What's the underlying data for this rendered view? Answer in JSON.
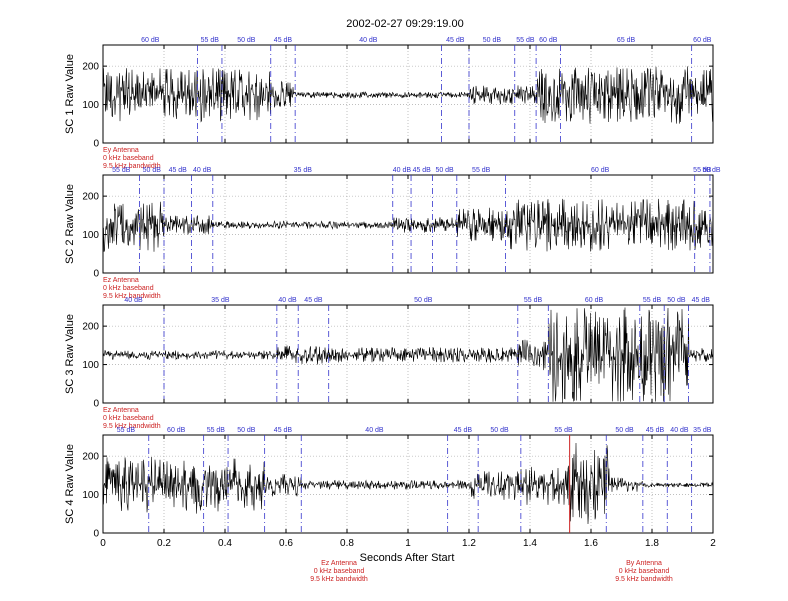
{
  "chart_data": {
    "type": "line",
    "title": "2002-02-27 09:29:19.00",
    "xlabel": "Seconds After Start",
    "xlim": [
      0,
      2
    ],
    "ylim": [
      0,
      255
    ],
    "x_ticks": [
      "0",
      "0.2",
      "0.4",
      "0.6",
      "0.8",
      "1",
      "1.2",
      "1.4",
      "1.6",
      "1.8",
      "2"
    ],
    "y_ticks": [
      "0",
      "100",
      "200"
    ],
    "grid": true,
    "colors": {
      "trace": "#000000",
      "gain_marker": "#3333cc",
      "antenna_note": "#cc2222",
      "channel_break": "#cc2222"
    },
    "panels": [
      {
        "ylabel": "SC 1 Raw Value",
        "notes": [
          "Ey Antenna",
          "0 kHz baseband",
          "9.5 kHz bandwidth"
        ],
        "gain_changes": [
          {
            "t": 0.0,
            "label": "60 dB"
          },
          {
            "t": 0.31,
            "label": "55 dB"
          },
          {
            "t": 0.39,
            "label": "50 dB"
          },
          {
            "t": 0.55,
            "label": "45 dB"
          },
          {
            "t": 0.63,
            "label": "40 dB"
          },
          {
            "t": 1.11,
            "label": "45 dB"
          },
          {
            "t": 1.2,
            "label": "50 dB"
          },
          {
            "t": 1.35,
            "label": "55 dB"
          },
          {
            "t": 1.42,
            "label": "60 dB"
          },
          {
            "t": 1.5,
            "label": "65 dB"
          },
          {
            "t": 1.93,
            "label": "60 dB"
          }
        ],
        "segments": [
          {
            "t0": 0.0,
            "t1": 0.55,
            "level": 125,
            "amp": 70
          },
          {
            "t0": 0.55,
            "t1": 0.63,
            "level": 125,
            "amp": 35
          },
          {
            "t0": 0.63,
            "t1": 1.2,
            "level": 125,
            "amp": 8
          },
          {
            "t0": 1.2,
            "t1": 1.42,
            "level": 125,
            "amp": 25
          },
          {
            "t0": 1.42,
            "t1": 2.0,
            "level": 125,
            "amp": 75
          }
        ]
      },
      {
        "ylabel": "SC 2 Raw Value",
        "notes": [
          "Ez Antenna",
          "0 kHz baseband",
          "9.5 kHz bandwidth"
        ],
        "gain_changes": [
          {
            "t": 0.0,
            "label": "55 dB"
          },
          {
            "t": 0.12,
            "label": "50 dB"
          },
          {
            "t": 0.2,
            "label": "45 dB"
          },
          {
            "t": 0.29,
            "label": "40 dB"
          },
          {
            "t": 0.36,
            "label": "35 dB"
          },
          {
            "t": 0.95,
            "label": "40 dB"
          },
          {
            "t": 1.01,
            "label": "45 dB"
          },
          {
            "t": 1.08,
            "label": "50 dB"
          },
          {
            "t": 1.16,
            "label": "55 dB"
          },
          {
            "t": 1.32,
            "label": "60 dB"
          },
          {
            "t": 1.94,
            "label": "55 dB"
          },
          {
            "t": 1.99,
            "label": "50 dB"
          }
        ],
        "segments": [
          {
            "t0": 0.0,
            "t1": 0.2,
            "level": 125,
            "amp": 70
          },
          {
            "t0": 0.2,
            "t1": 0.36,
            "level": 125,
            "amp": 25
          },
          {
            "t0": 0.36,
            "t1": 0.95,
            "level": 125,
            "amp": 10
          },
          {
            "t0": 0.95,
            "t1": 1.16,
            "level": 125,
            "amp": 20
          },
          {
            "t0": 1.16,
            "t1": 1.32,
            "level": 125,
            "amp": 45
          },
          {
            "t0": 1.32,
            "t1": 2.0,
            "level": 125,
            "amp": 70
          }
        ]
      },
      {
        "ylabel": "SC 3 Raw Value",
        "notes": [
          "Ez Antenna",
          "0 kHz baseband",
          "9.5 kHz bandwidth"
        ],
        "gain_changes": [
          {
            "t": 0.0,
            "label": "40 dB"
          },
          {
            "t": 0.2,
            "label": "35 dB"
          },
          {
            "t": 0.57,
            "label": "40 dB"
          },
          {
            "t": 0.64,
            "label": "45 dB"
          },
          {
            "t": 0.74,
            "label": "50 dB"
          },
          {
            "t": 1.36,
            "label": "55 dB"
          },
          {
            "t": 1.46,
            "label": "60 dB"
          },
          {
            "t": 1.76,
            "label": "55 dB"
          },
          {
            "t": 1.84,
            "label": "50 dB"
          },
          {
            "t": 1.92,
            "label": "45 dB"
          }
        ],
        "segments": [
          {
            "t0": 0.0,
            "t1": 0.57,
            "level": 125,
            "amp": 12
          },
          {
            "t0": 0.57,
            "t1": 0.74,
            "level": 125,
            "amp": 25
          },
          {
            "t0": 0.74,
            "t1": 1.36,
            "level": 125,
            "amp": 20
          },
          {
            "t0": 1.36,
            "t1": 1.46,
            "level": 125,
            "amp": 40
          },
          {
            "t0": 1.46,
            "t1": 1.92,
            "level": 125,
            "amp": 125
          },
          {
            "t0": 1.92,
            "t1": 2.0,
            "level": 125,
            "amp": 18
          }
        ]
      },
      {
        "ylabel": "SC 4 Raw Value",
        "notes": [],
        "gain_changes": [
          {
            "t": 0.0,
            "label": "55 dB"
          },
          {
            "t": 0.15,
            "label": "60 dB"
          },
          {
            "t": 0.33,
            "label": "55 dB"
          },
          {
            "t": 0.41,
            "label": "50 dB"
          },
          {
            "t": 0.53,
            "label": "45 dB"
          },
          {
            "t": 0.65,
            "label": "40 dB"
          },
          {
            "t": 1.13,
            "label": "45 dB"
          },
          {
            "t": 1.23,
            "label": "50 dB"
          },
          {
            "t": 1.37,
            "label": "55 dB"
          },
          {
            "t": 1.65,
            "label": "50 dB"
          },
          {
            "t": 1.77,
            "label": "45 dB"
          },
          {
            "t": 1.85,
            "label": "40 dB"
          },
          {
            "t": 1.93,
            "label": "35 dB"
          }
        ],
        "segments": [
          {
            "t0": 0.0,
            "t1": 0.53,
            "level": 125,
            "amp": 75
          },
          {
            "t0": 0.53,
            "t1": 0.65,
            "level": 125,
            "amp": 30
          },
          {
            "t0": 0.65,
            "t1": 1.2,
            "level": 125,
            "amp": 12
          },
          {
            "t0": 1.2,
            "t1": 1.37,
            "level": 125,
            "amp": 40
          },
          {
            "t0": 1.37,
            "t1": 1.53,
            "level": 125,
            "amp": 55
          },
          {
            "t0": 1.53,
            "t1": 1.66,
            "level": 125,
            "amp": 110
          },
          {
            "t0": 1.66,
            "t1": 1.77,
            "level": 125,
            "amp": 20
          },
          {
            "t0": 1.77,
            "t1": 2.0,
            "level": 125,
            "amp": 6
          }
        ],
        "channel_breaks": [
          1.53
        ]
      }
    ],
    "bottom_notes": [
      {
        "t": 0.8,
        "lines": [
          "Ez Antenna",
          "0 kHz baseband",
          "9.5 kHz bandwidth"
        ]
      },
      {
        "t": 1.8,
        "lines": [
          "By Antenna",
          "0 kHz baseband",
          "9.5 kHz bandwidth"
        ]
      }
    ]
  }
}
